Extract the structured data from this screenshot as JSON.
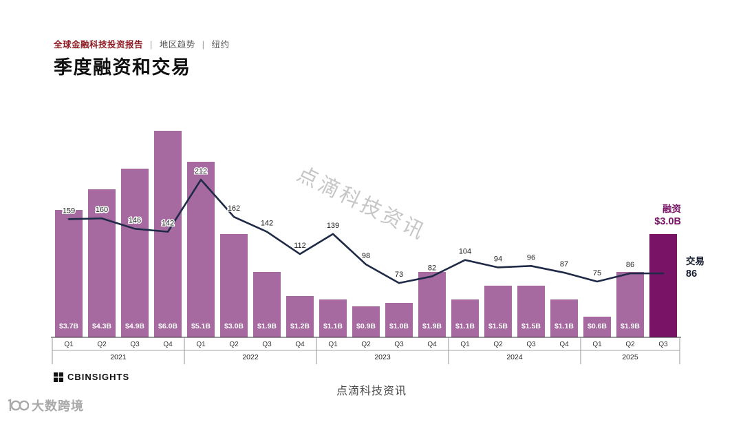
{
  "header": {
    "report": "全球金融科技投资报告",
    "sep": "|",
    "crumb_region": "地区趋势",
    "crumb_city": "纽约",
    "title": "季度融资和交易"
  },
  "annotations": {
    "funding_label": "融资",
    "funding_value": "$3.0B",
    "deals_label": "交易",
    "deals_value": "86"
  },
  "watermarks": {
    "diagonal": "点滴科技资讯",
    "bottom_center": "点滴科技资讯",
    "corner_text": "大数跨境"
  },
  "footer": {
    "brand": "CBINSIGHTS"
  },
  "chart_data": {
    "type": "bar+line",
    "title": "季度融资和交易",
    "categories": [
      "Q1",
      "Q2",
      "Q3",
      "Q4",
      "Q1",
      "Q2",
      "Q3",
      "Q4",
      "Q1",
      "Q2",
      "Q3",
      "Q4",
      "Q1",
      "Q2",
      "Q3",
      "Q4",
      "Q1",
      "Q2",
      "Q3"
    ],
    "year_groups": [
      {
        "label": "2021",
        "count": 4
      },
      {
        "label": "2022",
        "count": 4
      },
      {
        "label": "2023",
        "count": 4
      },
      {
        "label": "2024",
        "count": 4
      },
      {
        "label": "2025",
        "count": 3
      }
    ],
    "bar_series": {
      "name": "融资",
      "unit": "USD billions",
      "values": [
        3.7,
        4.3,
        4.9,
        6.0,
        5.1,
        3.0,
        1.9,
        1.2,
        1.1,
        0.9,
        1.0,
        1.9,
        1.1,
        1.5,
        1.5,
        1.1,
        0.6,
        1.9,
        3.0
      ],
      "labels": [
        "$3.7B",
        "$4.3B",
        "$4.9B",
        "$6.0B",
        "$5.1B",
        "$3.0B",
        "$1.9B",
        "$1.2B",
        "$1.1B",
        "$0.9B",
        "$1.0B",
        "$1.9B",
        "$1.1B",
        "$1.5B",
        "$1.5B",
        "$1.1B",
        "$0.6B",
        "$1.9B",
        null
      ],
      "highlight_index": 18
    },
    "line_series": {
      "name": "交易",
      "values": [
        159,
        160,
        146,
        142,
        212,
        162,
        142,
        112,
        139,
        98,
        73,
        82,
        104,
        94,
        96,
        87,
        75,
        86,
        86
      ],
      "labels": [
        "159",
        "160",
        "146",
        "142",
        "212",
        "162",
        "142",
        "112",
        "139",
        "98",
        "73",
        "82",
        "104",
        "94",
        "96",
        "87",
        "75",
        "86",
        null
      ]
    },
    "colors": {
      "bar": "#A66AA0",
      "bar_highlight": "#781366",
      "line": "#1E2A46",
      "point_label": "#1b1b1b",
      "bar_label": "#ffffff",
      "axis": "#333333"
    },
    "legend_position": "right-annotations",
    "grid": false
  }
}
